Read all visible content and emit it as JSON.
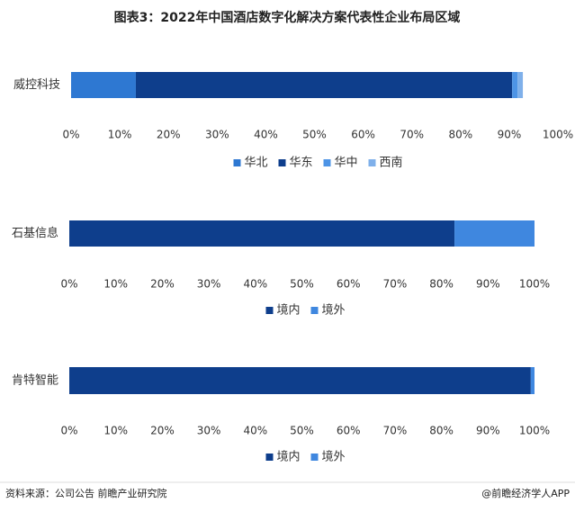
{
  "title": "图表3：2022年中国酒店数字化解决方案代表性企业布局区域",
  "source": "资料来源：公司公告 前瞻产业研究院",
  "credit": "@前瞻经济学人APP",
  "chart_data": [
    {
      "type": "stacked-bar-horizontal",
      "categories": [
        "威控科技"
      ],
      "series": [
        {
          "name": "华北",
          "color": "#2e78d2",
          "values": [
            13.3
          ]
        },
        {
          "name": "华东",
          "color": "#0e3e8c",
          "values": [
            77.3
          ]
        },
        {
          "name": "华中",
          "color": "#4d94e6",
          "values": [
            1.1
          ]
        },
        {
          "name": "西南",
          "color": "#7fb0ea",
          "values": [
            1.1
          ]
        }
      ],
      "xlim": [
        0,
        100
      ],
      "xticks": [
        {
          "value": 0,
          "label": "0%"
        },
        {
          "value": 10,
          "label": "10%"
        },
        {
          "value": 20,
          "label": "20%"
        },
        {
          "value": 30,
          "label": "30%"
        },
        {
          "value": 40,
          "label": "40%"
        },
        {
          "value": 50,
          "label": "50%"
        },
        {
          "value": 60,
          "label": "60%"
        },
        {
          "value": 70,
          "label": "70%"
        },
        {
          "value": 80,
          "label": "80%"
        },
        {
          "value": 90,
          "label": "90%"
        },
        {
          "value": 100,
          "label": "100%"
        }
      ]
    },
    {
      "type": "stacked-bar-horizontal",
      "categories": [
        "石基信息"
      ],
      "series": [
        {
          "name": "境内",
          "color": "#0e3e8c",
          "values": [
            82.8
          ]
        },
        {
          "name": "境外",
          "color": "#3f87df",
          "values": [
            17.2
          ]
        }
      ],
      "xlim": [
        0,
        100
      ],
      "xticks": [
        {
          "value": 0,
          "label": "0%"
        },
        {
          "value": 10,
          "label": "10%"
        },
        {
          "value": 20,
          "label": "20%"
        },
        {
          "value": 30,
          "label": "30%"
        },
        {
          "value": 40,
          "label": "40%"
        },
        {
          "value": 50,
          "label": "50%"
        },
        {
          "value": 60,
          "label": "60%"
        },
        {
          "value": 70,
          "label": "70%"
        },
        {
          "value": 80,
          "label": "80%"
        },
        {
          "value": 90,
          "label": "90%"
        },
        {
          "value": 100,
          "label": "100%"
        }
      ]
    },
    {
      "type": "stacked-bar-horizontal",
      "categories": [
        "肯特智能"
      ],
      "series": [
        {
          "name": "境内",
          "color": "#0e3e8c",
          "values": [
            99.2
          ]
        },
        {
          "name": "境外",
          "color": "#3f87df",
          "values": [
            0.8
          ]
        }
      ],
      "xlim": [
        0,
        100
      ],
      "xticks": [
        {
          "value": 0,
          "label": "0%"
        },
        {
          "value": 10,
          "label": "10%"
        },
        {
          "value": 20,
          "label": "20%"
        },
        {
          "value": 30,
          "label": "30%"
        },
        {
          "value": 40,
          "label": "40%"
        },
        {
          "value": 50,
          "label": "50%"
        },
        {
          "value": 60,
          "label": "60%"
        },
        {
          "value": 70,
          "label": "70%"
        },
        {
          "value": 80,
          "label": "80%"
        },
        {
          "value": 90,
          "label": "90%"
        },
        {
          "value": 100,
          "label": "100%"
        }
      ]
    }
  ]
}
